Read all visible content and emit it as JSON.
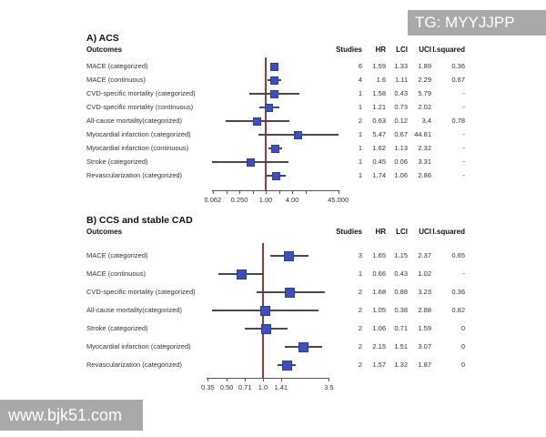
{
  "watermarks": {
    "top_right": "TG: MYYJJPP",
    "bottom_left": "www.bjk51.com"
  },
  "colors": {
    "marker_fill": "#3a50c2",
    "marker_border": "#2c3da0",
    "reference_line": "#9c3a38",
    "ci_line": "#4a4a4a",
    "watermark_bg": "#a9a9a9",
    "watermark_text": "#ffffff",
    "text": "#2b2b2b"
  },
  "chart_data": [
    {
      "type": "forest",
      "title": "A) ACS",
      "outcomes_header": "Outcomes",
      "columns": [
        "Studies",
        "HR",
        "LCI",
        "UCI",
        "I.squared"
      ],
      "xscale": "log",
      "reference_value": 1.0,
      "axis_ticks": [
        {
          "value": 0.062,
          "label": "0.062"
        },
        {
          "value": 0.125,
          "label": ""
        },
        {
          "value": 0.25,
          "label": "0.250"
        },
        {
          "value": 0.5,
          "label": ""
        },
        {
          "value": 1,
          "label": "1.00"
        },
        {
          "value": 2,
          "label": ""
        },
        {
          "value": 4,
          "label": "4.00"
        },
        {
          "value": 8,
          "label": ""
        },
        {
          "value": 45,
          "label": "45.000"
        }
      ],
      "rows": [
        {
          "label": "MACE (categorized)",
          "studies": "6",
          "hr": "1.59",
          "lci": "1.33",
          "uci": "1.89",
          "i_squared": "0.36"
        },
        {
          "label": "MACE (continuous)",
          "studies": "4",
          "hr": "1.6",
          "lci": "1.11",
          "uci": "2.29",
          "i_squared": "0.67"
        },
        {
          "label": "CVD-specific mortality (categorized)",
          "studies": "1",
          "hr": "1.58",
          "lci": "0.43",
          "uci": "5.79",
          "i_squared": "-"
        },
        {
          "label": "CVD-specific mortality (continuous)",
          "studies": "1",
          "hr": "1.21",
          "lci": "0.73",
          "uci": "2.02",
          "i_squared": "-"
        },
        {
          "label": "All-cause mortality(categorized)",
          "studies": "2",
          "hr": "0.63",
          "lci": "0.12",
          "uci": "3,4",
          "i_squared": "0.78"
        },
        {
          "label": "Myocardial infarction (categorized)",
          "studies": "1",
          "hr": "5.47",
          "lci": "0.67",
          "uci": "44.81",
          "i_squared": "-"
        },
        {
          "label": "Myocardial infarction (continuous)",
          "studies": "1",
          "hr": "1.62",
          "lci": "1.13",
          "uci": "2.32",
          "i_squared": "-"
        },
        {
          "label": "Stroke (categorized)",
          "studies": "1",
          "hr": "0.45",
          "lci": "0.06",
          "uci": "3.31",
          "i_squared": "-"
        },
        {
          "label": "Revascularization (categorized)",
          "studies": "1",
          "hr": "1.74",
          "lci": "1.06",
          "uci": "2.86",
          "i_squared": "-"
        }
      ]
    },
    {
      "type": "forest",
      "title": "B) CCS and stable CAD",
      "outcomes_header": "Outcomes",
      "columns": [
        "Studies",
        "HR",
        "LCI",
        "UCI",
        "I.squared"
      ],
      "xscale": "log",
      "reference_value": 1.0,
      "axis_ticks": [
        {
          "value": 0.35,
          "label": "0.35"
        },
        {
          "value": 0.5,
          "label": "0.50"
        },
        {
          "value": 0.71,
          "label": "0.71"
        },
        {
          "value": 1,
          "label": "1.0"
        },
        {
          "value": 1.41,
          "label": "1.41"
        },
        {
          "value": 3.5,
          "label": "3.5"
        }
      ],
      "rows": [
        {
          "label": "MACE (categorized)",
          "studies": "3",
          "hr": "1.65",
          "lci": "1.15",
          "uci": "2.37",
          "i_squared": "0.65"
        },
        {
          "label": "MACE (continuous)",
          "studies": "1",
          "hr": "0.66",
          "lci": "0.43",
          "uci": "1.02",
          "i_squared": "-"
        },
        {
          "label": "CVD-specific mortality (categorized)",
          "studies": "2",
          "hr": "1.68",
          "lci": "0.88",
          "uci": "3.23",
          "i_squared": "0.36"
        },
        {
          "label": "All-cause mortality(categorized)",
          "studies": "2",
          "hr": "1.05",
          "lci": "0.38",
          "uci": "2.88",
          "i_squared": "0.82"
        },
        {
          "label": "Stroke (categorized)",
          "studies": "2",
          "hr": "1.06",
          "lci": "0.71",
          "uci": "1.59",
          "i_squared": "0"
        },
        {
          "label": "Myocardial infarction (categorized)",
          "studies": "2",
          "hr": "2.15",
          "lci": "1.51",
          "uci": "3.07",
          "i_squared": "0"
        },
        {
          "label": "Revascularization (categorized)",
          "studies": "2",
          "hr": "1.57",
          "lci": "1.32",
          "uci": "1.87",
          "i_squared": "0"
        }
      ]
    }
  ]
}
